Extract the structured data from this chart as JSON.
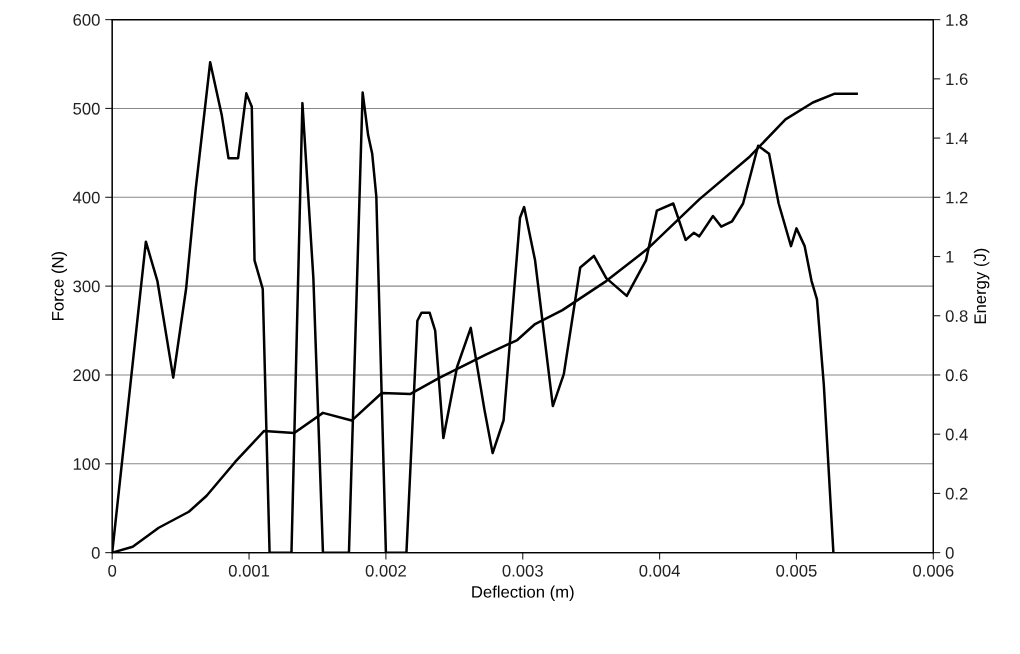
{
  "chart_data": {
    "type": "line",
    "xlabel": "Deflection (m)",
    "ylabel": "Force (N)",
    "y2label": "Energy (J)",
    "xlim": [
      0,
      0.006
    ],
    "xticks": [
      0,
      0.001,
      0.002,
      0.003,
      0.004,
      0.005,
      0.006
    ],
    "ylim": [
      0,
      600
    ],
    "yticks": [
      0,
      100,
      200,
      300,
      400,
      500,
      600
    ],
    "y2lim": [
      0,
      1.8
    ],
    "y2ticks": [
      0,
      0.2,
      0.4,
      0.6,
      0.8,
      1,
      1.2,
      1.4,
      1.6,
      1.8
    ],
    "grid": "y",
    "marker": "none",
    "line_style": "solid",
    "series": [
      {
        "color": "#000000",
        "x": [
          0,
          0.000246,
          0.00033,
          0.000446,
          0.00054,
          0.00061,
          0.000716,
          0.0008,
          0.00085,
          0.00092,
          0.00098,
          0.00102,
          0.00104,
          0.0011,
          0.00115,
          0.00131,
          0.00139,
          0.00147,
          0.00154,
          0.00173,
          0.00183,
          0.00187,
          0.0019,
          0.00193,
          0.002,
          0.00215,
          0.00223,
          0.00226,
          0.00232,
          0.00236,
          0.00242,
          0.00252,
          0.00262,
          0.00272,
          0.00278,
          0.00286,
          0.00298,
          0.00301,
          0.00309,
          0.00322,
          0.0033,
          0.00342,
          0.00352,
          0.00361,
          0.00376,
          0.0039,
          0.00398,
          0.0041,
          0.00419,
          0.00425,
          0.00429,
          0.00439,
          0.00445,
          0.00453,
          0.00461,
          0.00472,
          0.0048,
          0.00487,
          0.00496,
          0.005,
          0.00506,
          0.00511,
          0.00515,
          0.0052,
          0.00527
        ],
        "values": [
          0,
          350,
          306,
          197,
          297,
          409,
          552,
          493,
          444,
          444,
          517,
          502,
          329,
          297,
          0,
          0,
          506,
          309,
          0,
          0,
          518,
          470,
          449,
          401,
          0,
          0,
          261,
          270,
          270,
          250,
          129,
          209,
          253,
          161,
          112,
          149,
          377,
          389,
          329,
          165,
          201,
          321,
          334,
          309,
          289,
          329,
          385,
          393,
          352,
          360,
          356,
          379,
          367,
          373,
          393,
          458,
          449,
          393,
          345,
          365,
          345,
          306,
          285,
          189,
          0
        ]
      },
      {
        "color": "#000000",
        "axis": "y2",
        "x": [
          0,
          0.00015,
          0.00034,
          0.00056,
          0.00069,
          0.0009,
          0.00111,
          0.00133,
          0.00154,
          0.00175,
          0.00197,
          0.00218,
          0.00239,
          0.00273,
          0.00296,
          0.00309,
          0.00329,
          0.00361,
          0.00391,
          0.00429,
          0.00466,
          0.00492,
          0.00512,
          0.00528,
          0.00544
        ],
        "values": [
          0,
          0.02,
          0.084,
          0.138,
          0.192,
          0.307,
          0.411,
          0.404,
          0.472,
          0.446,
          0.539,
          0.536,
          0.59,
          0.669,
          0.718,
          0.772,
          0.819,
          0.917,
          1.025,
          1.193,
          1.338,
          1.463,
          1.52,
          1.55,
          1.55
        ]
      }
    ]
  }
}
